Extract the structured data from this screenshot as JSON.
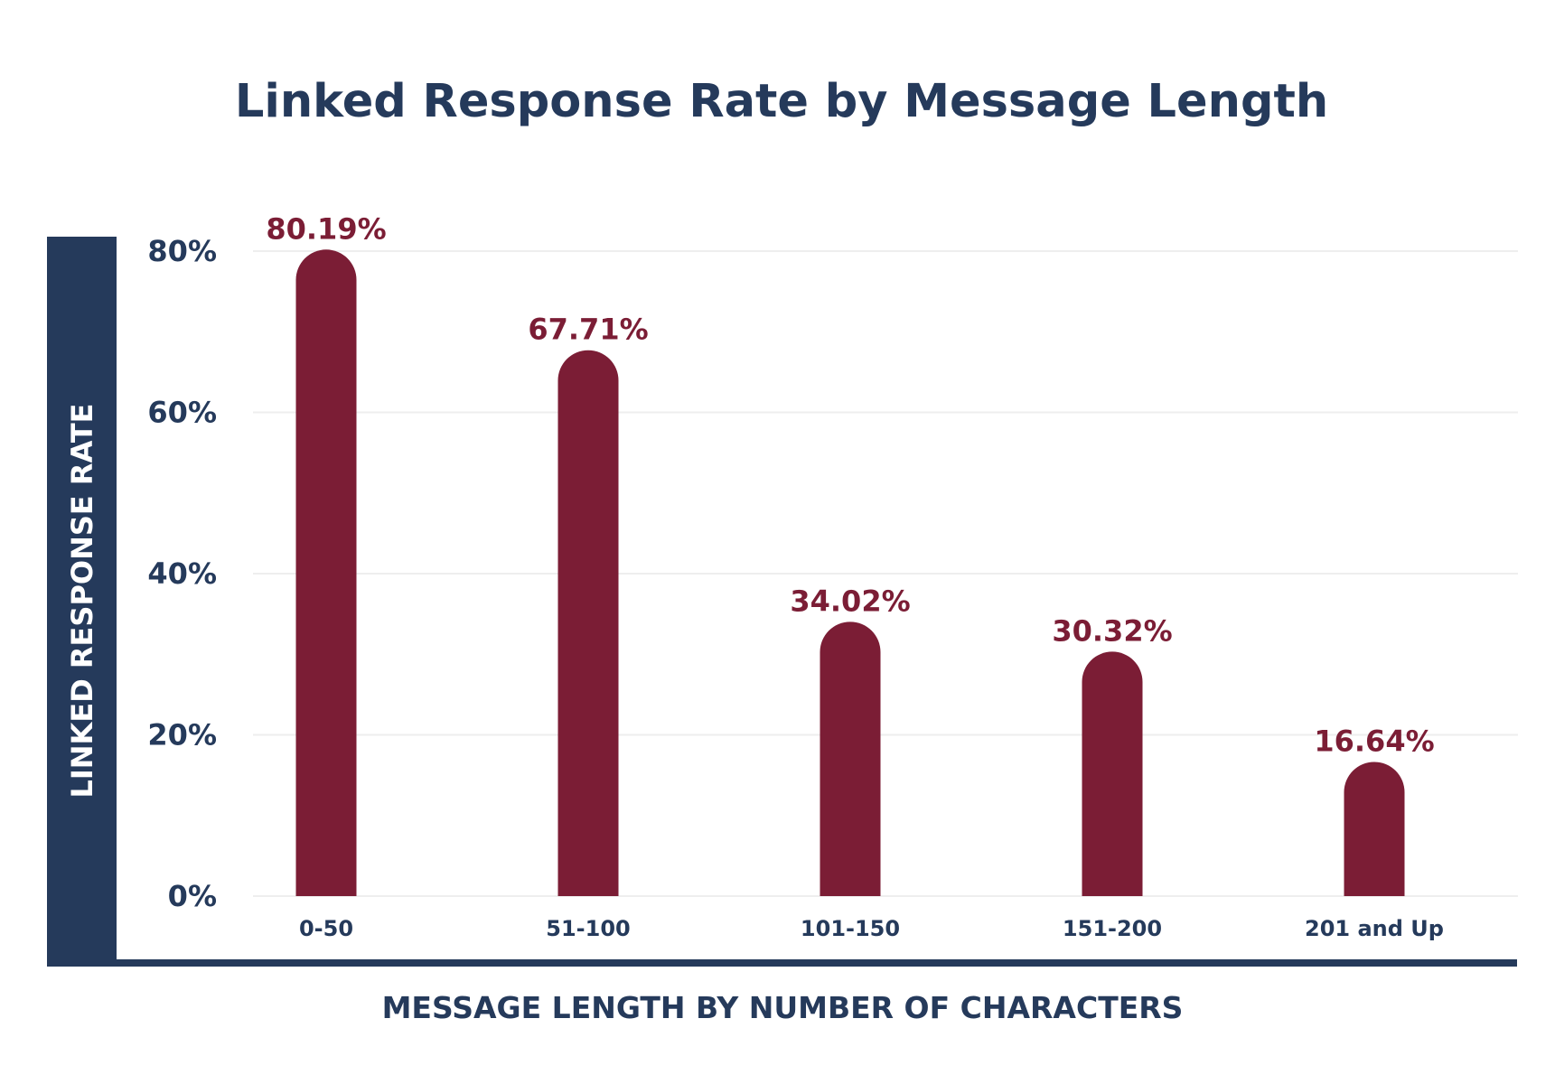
{
  "colors": {
    "navy": "#253a5b",
    "bar": "#7b1d35",
    "grid": "#eeeeee",
    "background": "#ffffff"
  },
  "chart_data": {
    "type": "bar",
    "title": "Linked Response Rate by Message Length",
    "xlabel": "MESSAGE LENGTH BY NUMBER OF CHARACTERS",
    "ylabel": "LINKED RESPONSE RATE",
    "categories": [
      "0-50",
      "51-100",
      "101-150",
      "151-200",
      "201 and Up"
    ],
    "values": [
      80.19,
      67.71,
      34.02,
      30.32,
      16.64
    ],
    "value_labels": [
      "80.19%",
      "67.71%",
      "34.02%",
      "30.32%",
      "16.64%"
    ],
    "ylim": [
      0,
      80
    ],
    "yticks": [
      0,
      20,
      40,
      60,
      80
    ],
    "ytick_labels": [
      "0%",
      "20%",
      "40%",
      "60%",
      "80%"
    ],
    "grid": true,
    "legend": "none"
  }
}
